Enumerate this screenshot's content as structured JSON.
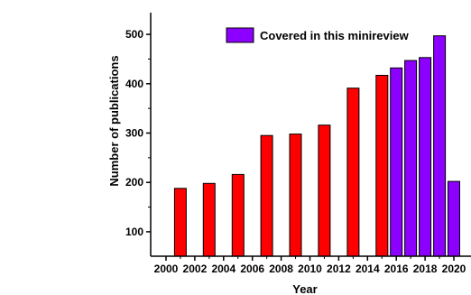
{
  "chart_data": {
    "type": "bar",
    "xlabel": "Year",
    "ylabel": "Number of publications",
    "ylim": [
      50,
      550
    ],
    "yticks": [
      100,
      200,
      300,
      400,
      500
    ],
    "xticks": [
      "2000",
      "2002",
      "2004",
      "2006",
      "2008",
      "2010",
      "2012",
      "2014",
      "2016",
      "2018",
      "2020"
    ],
    "grid": false,
    "legend": {
      "position": "top-center",
      "entries": [
        "Covered in this minireview"
      ]
    },
    "colors": {
      "uncovered": "#ff0000",
      "covered": "#8b00ff",
      "edge": "#000000"
    },
    "x": [
      2000,
      2001,
      2002,
      2003,
      2004,
      2005,
      2006,
      2007,
      2008,
      2009,
      2010,
      2011,
      2012,
      2013,
      2014,
      2015,
      2016,
      2017,
      2018,
      2019,
      2020
    ],
    "values": [
      null,
      188,
      null,
      198,
      null,
      216,
      null,
      295,
      null,
      298,
      null,
      316,
      null,
      391,
      null,
      417,
      432,
      447,
      453,
      497,
      202
    ],
    "covered": [
      false,
      false,
      false,
      false,
      false,
      false,
      false,
      false,
      false,
      false,
      false,
      false,
      false,
      false,
      false,
      false,
      true,
      true,
      true,
      true,
      true
    ]
  }
}
